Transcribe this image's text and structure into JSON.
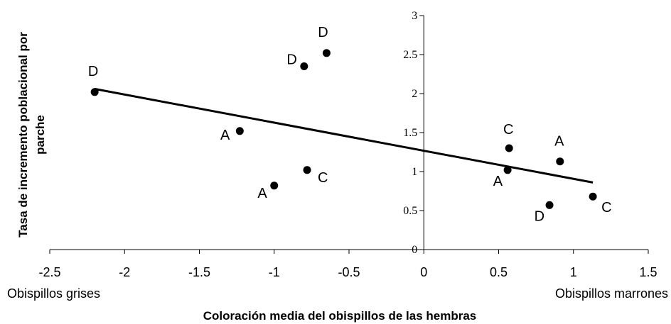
{
  "chart_data": {
    "type": "scatter",
    "xlabel": "Coloración media del obispillos de las hembras",
    "ylabel": "Tasa de incremento poblacional por parche",
    "xlim": [
      -2.5,
      1.5
    ],
    "ylim": [
      0,
      3
    ],
    "x_ticks": [
      -2.5,
      -2,
      -1.5,
      -1,
      -0.5,
      0,
      0.5,
      1,
      1.5
    ],
    "y_ticks": [
      0,
      0.5,
      1,
      1.5,
      2,
      2.5,
      3
    ],
    "x_tick_labels": [
      "-2.5",
      "-2",
      "-1.5",
      "-1",
      "-0.5",
      "0",
      "0.5",
      "1",
      "1.5"
    ],
    "y_tick_labels": [
      "0",
      "0.5",
      "1",
      "1.5",
      "2",
      "2.5",
      "3"
    ],
    "x_axis_end_labels": {
      "left": "Obispillos grises",
      "right": "Obispillos marrones"
    },
    "grid": false,
    "points": [
      {
        "x": -2.2,
        "y": 2.02,
        "label": "D"
      },
      {
        "x": -0.8,
        "y": 2.35,
        "label": "D"
      },
      {
        "x": -0.65,
        "y": 2.52,
        "label": "D"
      },
      {
        "x": -1.23,
        "y": 1.52,
        "label": "A"
      },
      {
        "x": -0.78,
        "y": 1.02,
        "label": "C"
      },
      {
        "x": -1.0,
        "y": 0.82,
        "label": "A"
      },
      {
        "x": 0.57,
        "y": 1.3,
        "label": "C"
      },
      {
        "x": 0.56,
        "y": 1.02,
        "label": "A"
      },
      {
        "x": 0.91,
        "y": 1.13,
        "label": "A"
      },
      {
        "x": 0.84,
        "y": 0.57,
        "label": "D"
      },
      {
        "x": 1.13,
        "y": 0.68,
        "label": "C"
      }
    ],
    "trendline": {
      "x": [
        -2.2,
        1.13
      ],
      "y": [
        2.06,
        0.86
      ]
    }
  }
}
